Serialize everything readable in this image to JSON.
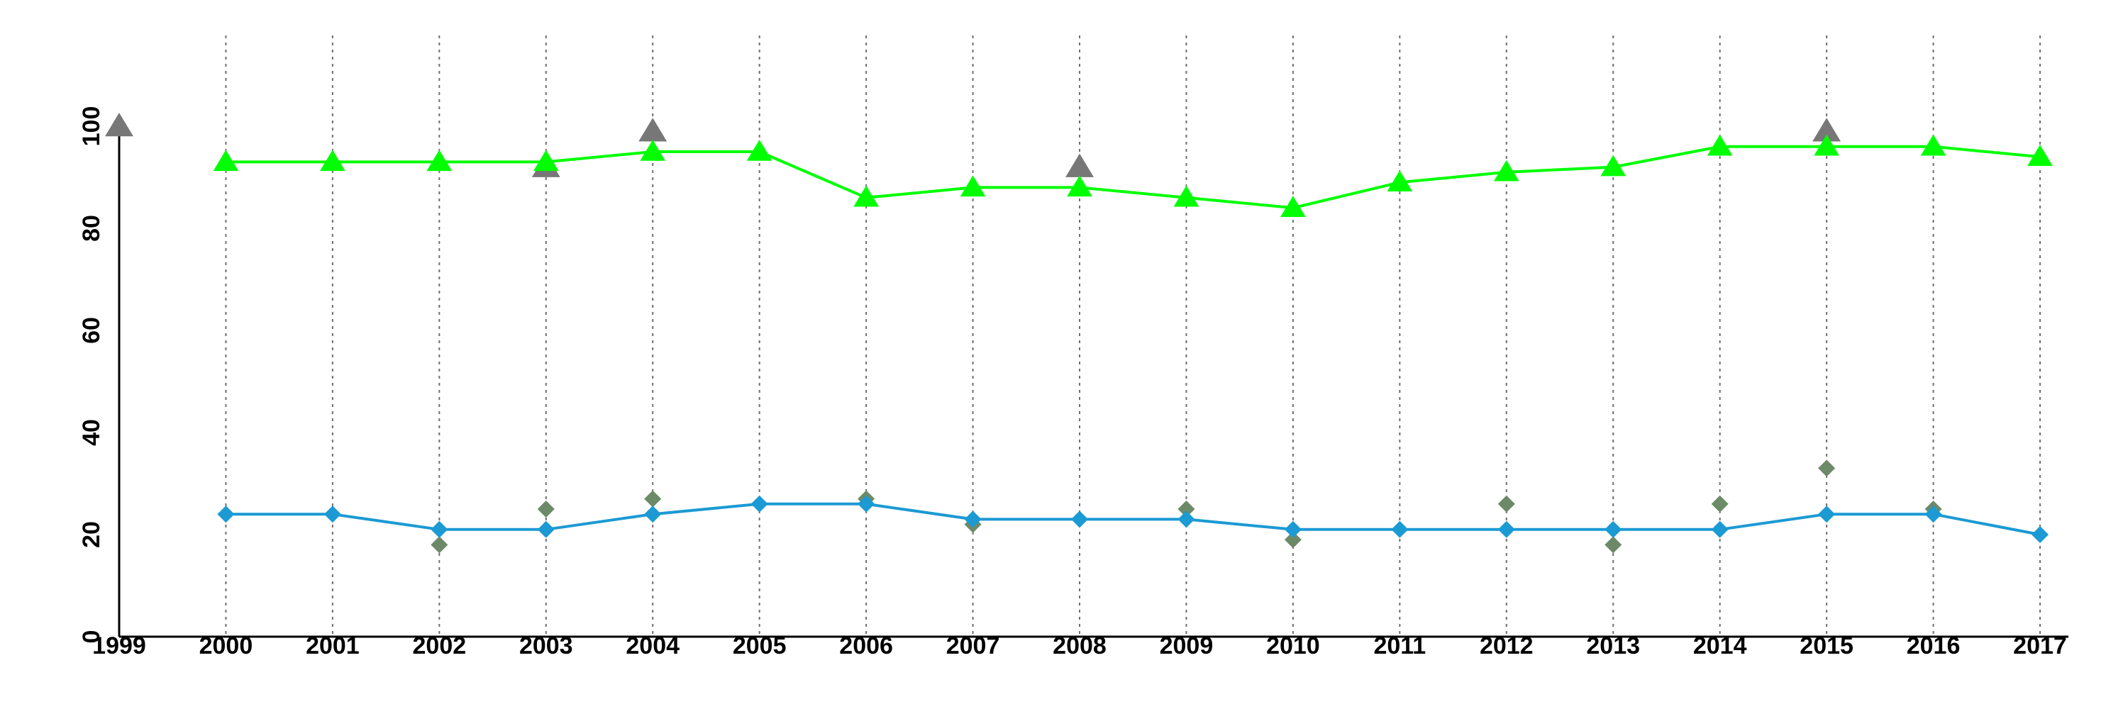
{
  "chart_data": {
    "type": "line",
    "title": "",
    "xlabel": "",
    "ylabel": "",
    "x": [
      1999,
      2000,
      2001,
      2002,
      2003,
      2004,
      2005,
      2006,
      2007,
      2008,
      2009,
      2010,
      2011,
      2012,
      2013,
      2014,
      2015,
      2016,
      2017
    ],
    "x_tick_labels": [
      "1999",
      "2000",
      "2001",
      "2002",
      "2003",
      "2004",
      "2005",
      "2006",
      "2007",
      "2008",
      "2009",
      "2010",
      "2011",
      "2012",
      "2013",
      "2014",
      "2015",
      "2016",
      "2017"
    ],
    "y_ticks": [
      0,
      20,
      40,
      60,
      80,
      100
    ],
    "y_tick_labels": [
      "0",
      "20",
      "40",
      "60",
      "80",
      "100"
    ],
    "xlim": [
      1999,
      2017
    ],
    "ylim": [
      0,
      100
    ],
    "grid": "vertical dotted lines at each year",
    "legend": "none",
    "series": [
      {
        "kind": "line",
        "marker": "triangle",
        "color": "#00ff00",
        "points": [
          [
            2000,
            93
          ],
          [
            2001,
            93
          ],
          [
            2002,
            93
          ],
          [
            2003,
            93
          ],
          [
            2004,
            95
          ],
          [
            2005,
            95
          ],
          [
            2006,
            86
          ],
          [
            2007,
            88
          ],
          [
            2008,
            88
          ],
          [
            2009,
            86
          ],
          [
            2010,
            84
          ],
          [
            2011,
            89
          ],
          [
            2012,
            91
          ],
          [
            2013,
            92
          ],
          [
            2014,
            96
          ],
          [
            2015,
            96
          ],
          [
            2016,
            96
          ],
          [
            2017,
            94
          ]
        ]
      },
      {
        "kind": "scatter",
        "marker": "triangle",
        "color": "#777777",
        "points": [
          [
            1999,
            100
          ],
          [
            2003,
            92
          ],
          [
            2004,
            99
          ],
          [
            2008,
            92
          ],
          [
            2015,
            99
          ]
        ]
      },
      {
        "kind": "line",
        "marker": "diamond",
        "color": "#1b9ad4",
        "points": [
          [
            2000,
            24
          ],
          [
            2001,
            24
          ],
          [
            2002,
            21
          ],
          [
            2003,
            21
          ],
          [
            2004,
            24
          ],
          [
            2005,
            26
          ],
          [
            2006,
            26
          ],
          [
            2007,
            23
          ],
          [
            2008,
            23
          ],
          [
            2009,
            23
          ],
          [
            2010,
            21
          ],
          [
            2011,
            21
          ],
          [
            2012,
            21
          ],
          [
            2013,
            21
          ],
          [
            2014,
            21
          ],
          [
            2015,
            24
          ],
          [
            2016,
            24
          ],
          [
            2017,
            20
          ]
        ]
      },
      {
        "kind": "scatter",
        "marker": "diamond",
        "color": "#6d8a68",
        "points": [
          [
            2002,
            18
          ],
          [
            2003,
            25
          ],
          [
            2004,
            27
          ],
          [
            2006,
            27
          ],
          [
            2007,
            22
          ],
          [
            2009,
            25
          ],
          [
            2010,
            19
          ],
          [
            2012,
            26
          ],
          [
            2013,
            18
          ],
          [
            2014,
            26
          ],
          [
            2015,
            33
          ],
          [
            2016,
            25
          ]
        ]
      }
    ]
  }
}
